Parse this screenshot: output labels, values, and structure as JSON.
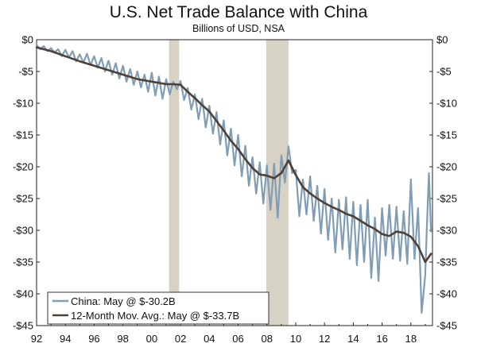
{
  "chart_data": {
    "type": "line",
    "title": "U.S. Net Trade Balance with China",
    "subtitle": "Billions of USD, NSA",
    "xlabel": "",
    "ylabel": "",
    "x_range": [
      1992.0,
      2019.5
    ],
    "ylim": [
      -45,
      0
    ],
    "y_ticks": [
      0,
      -5,
      -10,
      -15,
      -20,
      -25,
      -30,
      -35,
      -40,
      -45
    ],
    "y_tick_labels": [
      "$0",
      "-$5",
      "-$10",
      "-$15",
      "-$20",
      "-$25",
      "-$30",
      "-$35",
      "-$40",
      "-$45"
    ],
    "x_ticks": [
      1992,
      1994,
      1996,
      1998,
      2000,
      2002,
      2004,
      2006,
      2008,
      2010,
      2012,
      2014,
      2016,
      2018
    ],
    "x_tick_labels": [
      "92",
      "94",
      "96",
      "98",
      "00",
      "02",
      "04",
      "06",
      "08",
      "10",
      "12",
      "14",
      "16",
      "18"
    ],
    "shaded_periods": [
      [
        2001.2,
        2001.9
      ],
      [
        2007.95,
        2009.5
      ]
    ],
    "grid": false,
    "legend_position": "bottom-left",
    "series": [
      {
        "name": "China: May @ $-30.2B",
        "color": "#7f9db5",
        "x": [
          1992.0,
          1992.25,
          1992.5,
          1992.75,
          1993.0,
          1993.25,
          1993.5,
          1993.75,
          1994.0,
          1994.25,
          1994.5,
          1994.75,
          1995.0,
          1995.25,
          1995.5,
          1995.75,
          1996.0,
          1996.25,
          1996.5,
          1996.75,
          1997.0,
          1997.25,
          1997.5,
          1997.75,
          1998.0,
          1998.25,
          1998.5,
          1998.75,
          1999.0,
          1999.25,
          1999.5,
          1999.75,
          2000.0,
          2000.25,
          2000.5,
          2000.75,
          2001.0,
          2001.25,
          2001.5,
          2001.75,
          2002.0,
          2002.25,
          2002.5,
          2002.75,
          2003.0,
          2003.25,
          2003.5,
          2003.75,
          2004.0,
          2004.25,
          2004.5,
          2004.75,
          2005.0,
          2005.25,
          2005.5,
          2005.75,
          2006.0,
          2006.25,
          2006.5,
          2006.75,
          2007.0,
          2007.25,
          2007.5,
          2007.75,
          2008.0,
          2008.25,
          2008.5,
          2008.75,
          2009.0,
          2009.25,
          2009.5,
          2009.75,
          2010.0,
          2010.25,
          2010.5,
          2010.75,
          2011.0,
          2011.25,
          2011.5,
          2011.75,
          2012.0,
          2012.25,
          2012.5,
          2012.75,
          2013.0,
          2013.25,
          2013.5,
          2013.75,
          2014.0,
          2014.25,
          2014.5,
          2014.75,
          2015.0,
          2015.25,
          2015.5,
          2015.75,
          2016.0,
          2016.25,
          2016.5,
          2016.75,
          2017.0,
          2017.25,
          2017.5,
          2017.75,
          2018.0,
          2018.25,
          2018.5,
          2018.75,
          2019.0,
          2019.1,
          2019.25,
          2019.4
        ],
        "values": [
          -0.8,
          -1.5,
          -1.0,
          -1.8,
          -1.3,
          -2.0,
          -1.5,
          -2.6,
          -1.6,
          -2.8,
          -1.8,
          -3.4,
          -2.3,
          -3.6,
          -2.2,
          -4.0,
          -2.6,
          -4.4,
          -2.9,
          -5.0,
          -3.3,
          -5.5,
          -3.7,
          -6.1,
          -4.1,
          -6.6,
          -4.6,
          -7.1,
          -5.0,
          -7.5,
          -5.5,
          -8.2,
          -5.2,
          -8.8,
          -5.8,
          -9.3,
          -6.2,
          -8.6,
          -6.6,
          -7.8,
          -6.5,
          -9.5,
          -7.6,
          -11.0,
          -8.6,
          -12.5,
          -9.3,
          -13.8,
          -10.4,
          -14.8,
          -11.4,
          -16.5,
          -12.7,
          -18.2,
          -14.0,
          -19.8,
          -15.0,
          -21.5,
          -16.7,
          -23.0,
          -18.5,
          -24.2,
          -19.3,
          -25.8,
          -19.8,
          -26.8,
          -19.5,
          -28.0,
          -18.2,
          -22.5,
          -16.8,
          -21.0,
          -20.5,
          -27.8,
          -22.0,
          -27.5,
          -21.5,
          -28.5,
          -23.0,
          -30.5,
          -23.5,
          -31.5,
          -25.0,
          -33.5,
          -25.2,
          -33.0,
          -24.8,
          -34.5,
          -25.5,
          -35.5,
          -26.0,
          -35.0,
          -25.2,
          -37.5,
          -28.0,
          -38.0,
          -26.5,
          -34.0,
          -26.0,
          -34.5,
          -26.3,
          -34.8,
          -27.0,
          -35.3,
          -22.0,
          -34.5,
          -26.5,
          -43.0,
          -37.0,
          -30.0,
          -21.0,
          -30.2
        ]
      },
      {
        "name": "12-Month Mov. Avg.: May @ $-33.7B",
        "color": "#4e4037",
        "x": [
          1992.0,
          1993.0,
          1994.0,
          1995.0,
          1996.0,
          1997.0,
          1998.0,
          1999.0,
          2000.0,
          2001.0,
          2001.5,
          2002.0,
          2002.5,
          2003.0,
          2003.5,
          2004.0,
          2004.5,
          2005.0,
          2005.5,
          2006.0,
          2006.5,
          2007.0,
          2007.5,
          2008.0,
          2008.5,
          2009.0,
          2009.5,
          2010.0,
          2010.5,
          2011.0,
          2011.5,
          2012.0,
          2012.5,
          2013.0,
          2013.5,
          2014.0,
          2014.5,
          2015.0,
          2015.5,
          2016.0,
          2016.5,
          2017.0,
          2017.5,
          2018.0,
          2018.5,
          2019.0,
          2019.4
        ],
        "values": [
          -1.2,
          -1.8,
          -2.6,
          -3.4,
          -4.1,
          -4.8,
          -5.5,
          -6.2,
          -6.6,
          -7.0,
          -7.0,
          -7.1,
          -8.2,
          -9.2,
          -10.3,
          -11.3,
          -12.8,
          -14.3,
          -15.9,
          -17.2,
          -18.8,
          -20.2,
          -21.2,
          -21.4,
          -21.8,
          -21.0,
          -19.0,
          -21.3,
          -23.2,
          -24.2,
          -25.0,
          -25.7,
          -26.3,
          -26.8,
          -27.4,
          -27.8,
          -28.5,
          -29.2,
          -29.8,
          -30.6,
          -30.9,
          -30.2,
          -30.4,
          -31.0,
          -32.5,
          -35.0,
          -33.7
        ]
      }
    ]
  }
}
